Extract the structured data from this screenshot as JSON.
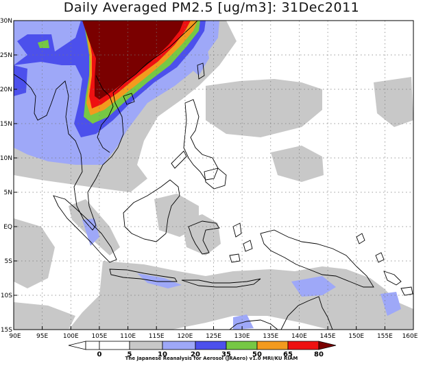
{
  "title": "Daily Averaged PM2.5 [ug/m3]: 31Dec2011",
  "axes": {
    "lat_labels": [
      "30N",
      "25N",
      "20N",
      "15N",
      "10N",
      "5N",
      "EQ",
      "5S",
      "10S",
      "15S"
    ],
    "lon_labels": [
      "90E",
      "95E",
      "100E",
      "105E",
      "110E",
      "115E",
      "120E",
      "125E",
      "130E",
      "135E",
      "140E",
      "145E",
      "150E",
      "155E",
      "160E"
    ]
  },
  "colorbar": {
    "ticks": [
      "0",
      "5",
      "10",
      "20",
      "35",
      "50",
      "65",
      "80"
    ],
    "colors": [
      "#ffffff",
      "#c8c8c8",
      "#9ea8f8",
      "#4c50ec",
      "#76c844",
      "#f39a1e",
      "#ee1111",
      "#7a0000"
    ]
  },
  "credit": "The Japanese Reanalysis for Aerosol (JRAero) v1.0 MRI/KU RIAM",
  "colors": {
    "gray": "#c8c8c8",
    "light_blue": "#9ea8f8",
    "blue": "#4c50ec",
    "green": "#76c844",
    "orange": "#f39a1e",
    "red": "#ee1111",
    "dark_red": "#7a0000"
  }
}
